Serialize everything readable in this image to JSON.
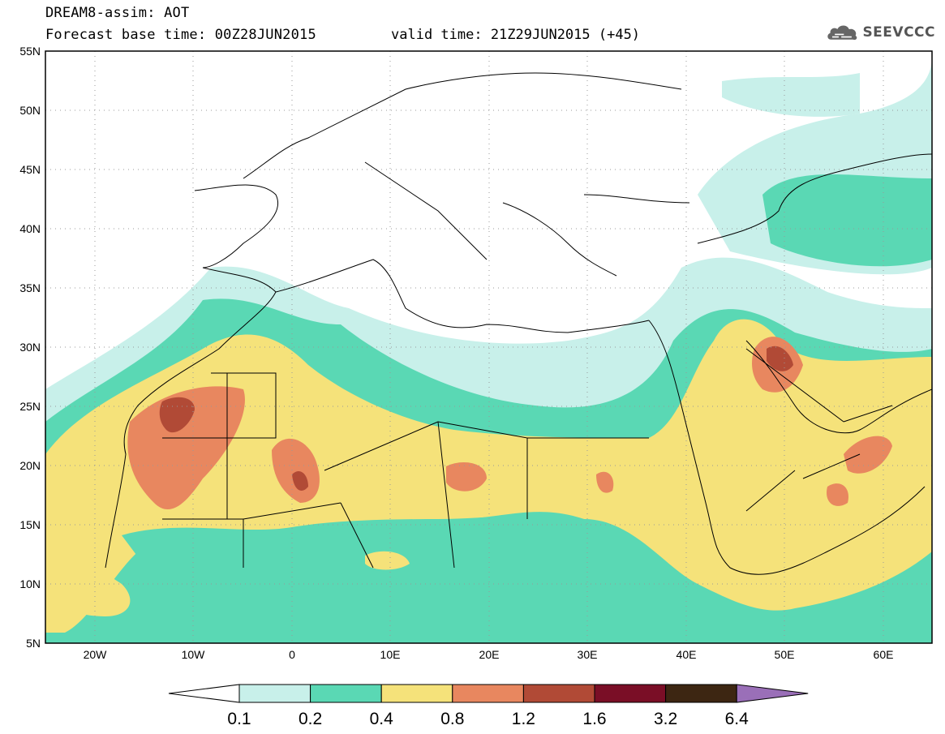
{
  "header": {
    "title": "DREAM8-assim: AOT",
    "base_time_line": "Forecast base time: 00Z28JUN2015",
    "valid_time_line": "valid time: 21Z29JUN2015 (+45)"
  },
  "logo": {
    "text": "SEEVCCC",
    "icon": "cloud-icon"
  },
  "map": {
    "lat_labels": [
      "55N",
      "50N",
      "45N",
      "40N",
      "35N",
      "30N",
      "25N",
      "20N",
      "15N",
      "10N",
      "5N"
    ],
    "lon_labels": [
      "20W",
      "10W",
      "0",
      "10E",
      "20E",
      "30E",
      "40E",
      "50E",
      "60E"
    ]
  },
  "colorbar": {
    "labels": [
      "0.1",
      "0.2",
      "0.4",
      "0.8",
      "1.2",
      "1.6",
      "3.2",
      "6.4"
    ],
    "colors": [
      "#ffffff",
      "#c8f0ea",
      "#5ad8b4",
      "#f5e27a",
      "#e8875f",
      "#b14a36",
      "#7a0e26",
      "#3d2612",
      "#9a6fb8"
    ]
  }
}
